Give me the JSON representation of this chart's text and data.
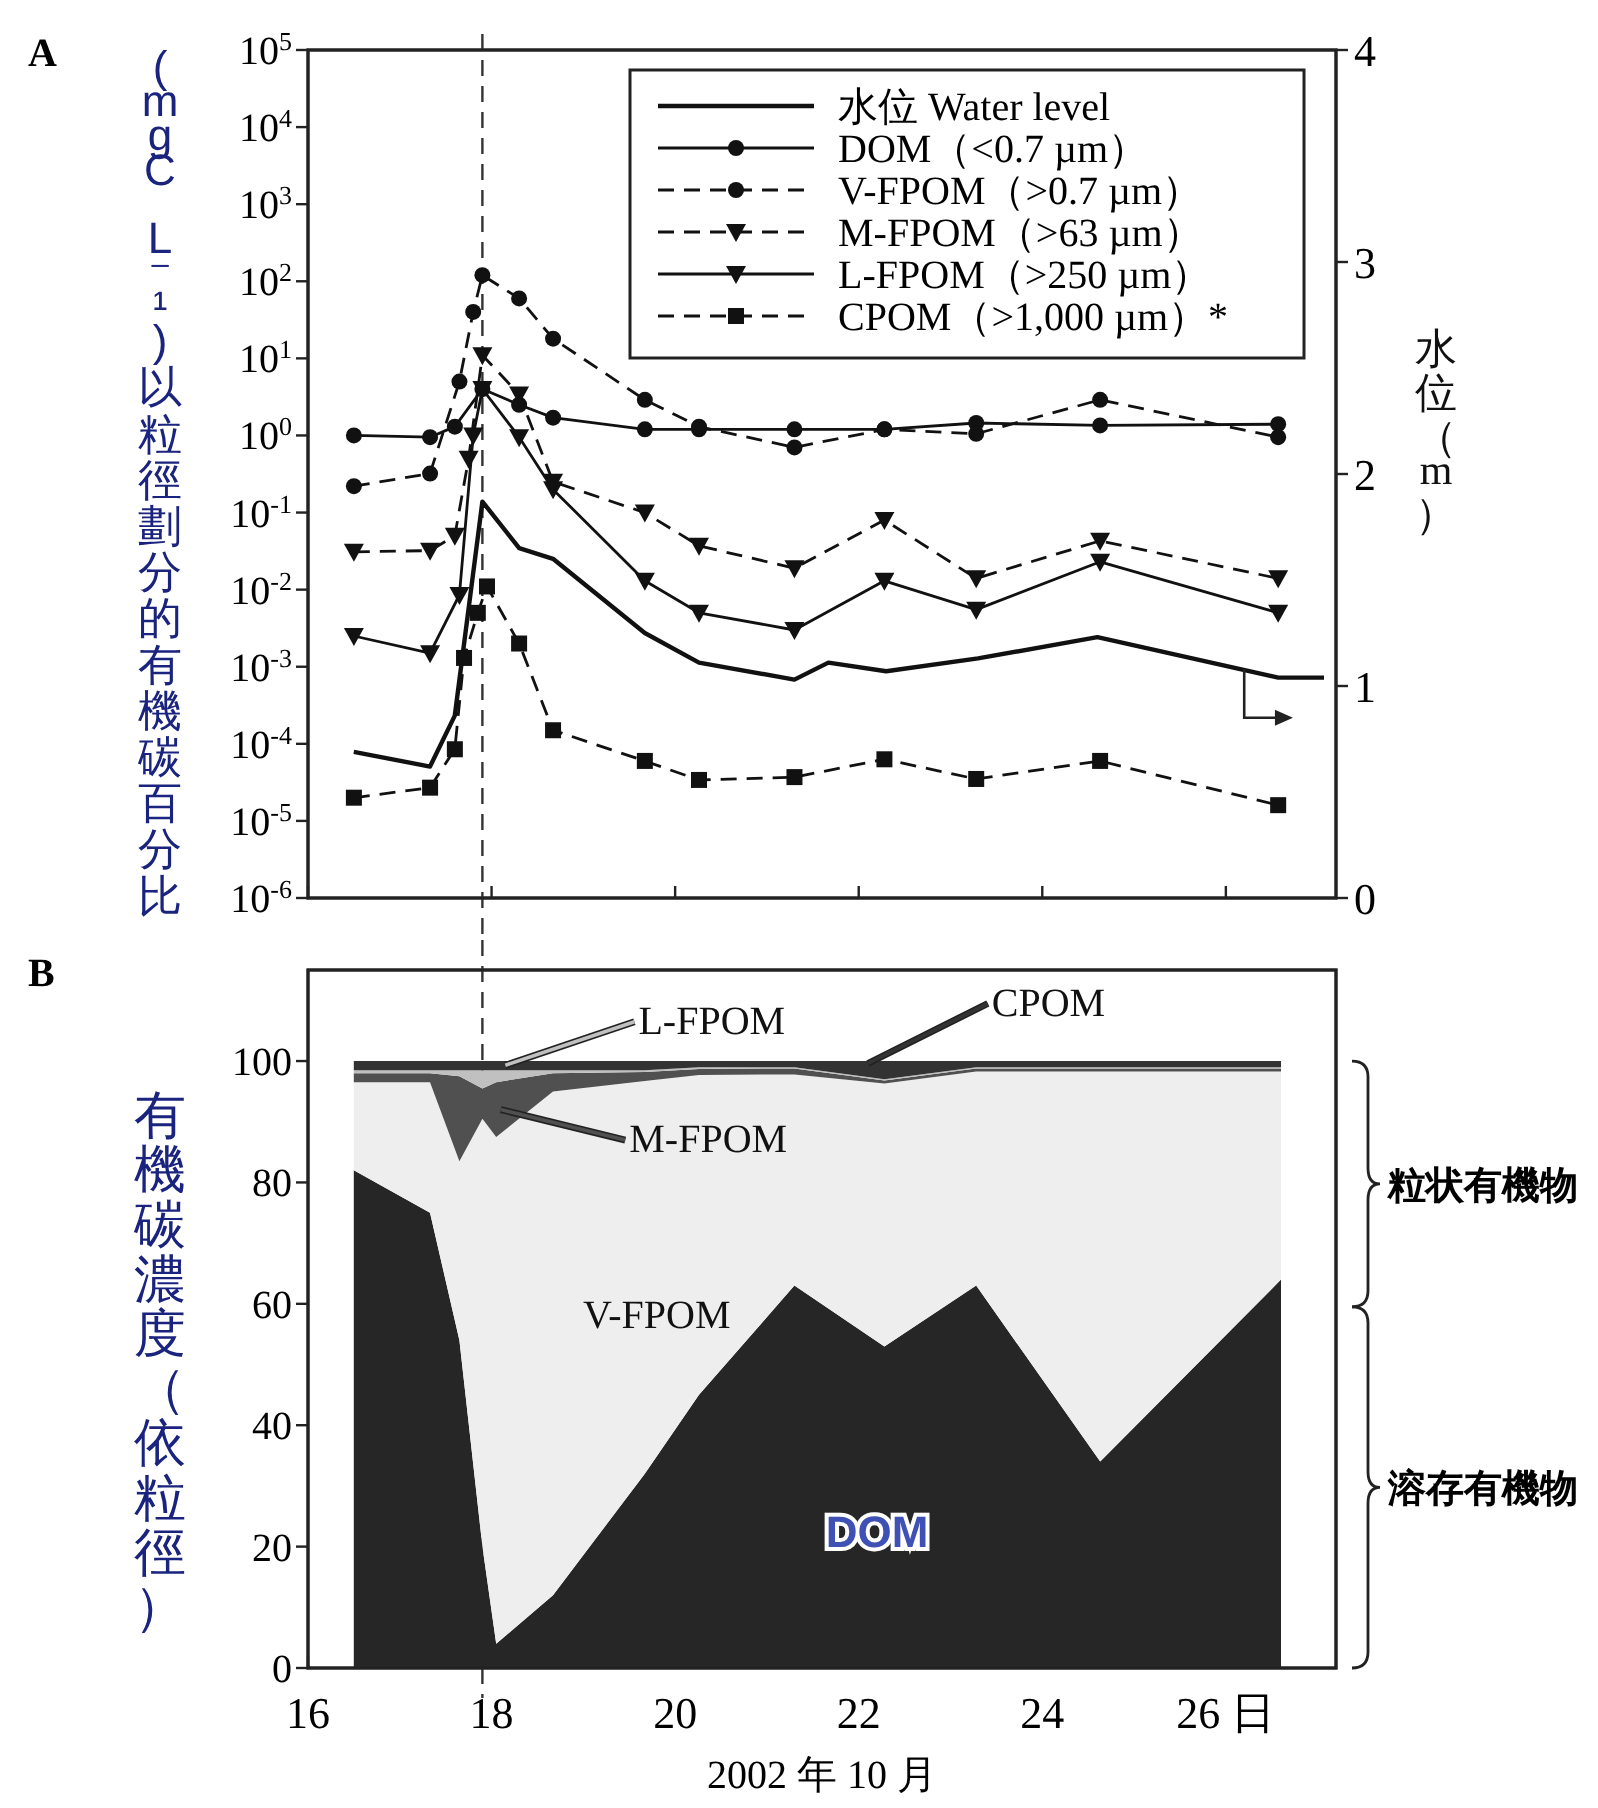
{
  "chart_data": [
    {
      "type": "line",
      "title": "A",
      "ylabel": "(mgC L⁻¹)以粒徑劃分的有機碳百分比",
      "y2label": "水位（m）",
      "xlim": [
        16,
        27.2
      ],
      "xticks": [
        16,
        18,
        20,
        22,
        24,
        26
      ],
      "ylim": [
        1e-06,
        100000
      ],
      "log": "y",
      "yticks": [
        {
          "value": 100000,
          "label": "10$^{5}$"
        },
        {
          "value": 10000,
          "label": "10$^{4}$"
        },
        {
          "value": 1000,
          "label": "10$^{3}$"
        },
        {
          "value": 100,
          "label": "10$^{2}$"
        },
        {
          "value": 10,
          "label": "10$^{1}$"
        },
        {
          "value": 1,
          "label": "10$^{0}$"
        },
        {
          "value": 0.1,
          "label": "10$^{-1}$"
        },
        {
          "value": 0.01,
          "label": "10$^{-2}$"
        },
        {
          "value": 0.001,
          "label": "10$^{-3}$"
        },
        {
          "value": 0.0001,
          "label": "10$^{-4}$"
        },
        {
          "value": 1e-05,
          "label": "10$^{-5}$"
        },
        {
          "value": 1e-06,
          "label": "10$^{-6}$"
        }
      ],
      "y2lim": [
        0,
        4
      ],
      "y2ticks": [
        0,
        1,
        2,
        3,
        4
      ],
      "tick_labels": "y",
      "legend": "top right",
      "ref_lines": [
        {
          "axis": "x",
          "value": 17.9,
          "line_style": "dashed"
        }
      ],
      "series": [
        {
          "name": "水位 Water level",
          "color": "#111111",
          "axis": "y2",
          "marker": "none",
          "line_style": "solid",
          "x": [
            16.5,
            17.33,
            17.6,
            17.9,
            18.3,
            18.67,
            19.67,
            20.26,
            21.3,
            21.67,
            22.3,
            23.3,
            24.6,
            26.57,
            27.07
          ],
          "values": [
            0.69,
            0.62,
            0.86,
            1.87,
            1.65,
            1.6,
            1.25,
            1.11,
            1.03,
            1.11,
            1.07,
            1.13,
            1.23,
            1.04,
            1.04
          ]
        },
        {
          "name": "DOM（<0.7 µm）",
          "color": "#111111",
          "marker": "circle",
          "line_style": "solid",
          "x": [
            16.5,
            17.33,
            17.6,
            17.9,
            18.3,
            18.67,
            19.67,
            20.26,
            21.3,
            22.28,
            23.28,
            24.63,
            26.57
          ],
          "values": [
            1.0,
            0.95,
            1.3,
            4,
            2.5,
            1.7,
            1.2,
            1.2,
            1.2,
            1.2,
            1.45,
            1.35,
            1.4
          ]
        },
        {
          "name": "V-FPOM（>0.7 µm）",
          "color": "#111111",
          "marker": "circle",
          "line_style": "dashed",
          "x": [
            16.5,
            17.33,
            17.65,
            17.8,
            17.9,
            18.3,
            18.67,
            19.67,
            20.26,
            21.3,
            22.28,
            23.28,
            24.63,
            26.57
          ],
          "values": [
            0.22,
            0.32,
            5,
            40,
            120,
            60,
            18,
            2.9,
            1.3,
            0.7,
            1.2,
            1.05,
            2.9,
            0.95
          ]
        },
        {
          "name": "M-FPOM（>63 µm）",
          "color": "#111111",
          "marker": "triangle",
          "line_style": "dashed",
          "x": [
            16.5,
            17.33,
            17.6,
            17.75,
            17.9,
            18.3,
            18.67,
            19.67,
            20.26,
            21.3,
            22.28,
            23.28,
            24.63,
            26.57
          ],
          "values": [
            0.031,
            0.032,
            0.05,
            0.5,
            11,
            3.4,
            0.25,
            0.1,
            0.037,
            0.019,
            0.08,
            0.014,
            0.043,
            0.014
          ]
        },
        {
          "name": "L-FPOM（>250 µm）",
          "color": "#111111",
          "marker": "triangle",
          "line_style": "solid",
          "x": [
            16.5,
            17.33,
            17.65,
            17.8,
            17.9,
            18.3,
            18.67,
            19.67,
            20.26,
            21.3,
            22.28,
            23.28,
            24.63,
            26.57
          ],
          "values": [
            0.0025,
            0.0015,
            0.0085,
            1.0,
            4,
            0.95,
            0.2,
            0.013,
            0.005,
            0.003,
            0.013,
            0.0055,
            0.023,
            0.005
          ]
        },
        {
          "name": "CPOM（>1,000 µm）*",
          "color": "#111111",
          "marker": "square",
          "line_style": "dashed",
          "x": [
            16.5,
            17.33,
            17.6,
            17.7,
            17.85,
            17.95,
            18.3,
            18.67,
            19.67,
            20.26,
            21.3,
            22.28,
            23.28,
            24.63,
            26.57
          ],
          "values": [
            2e-05,
            2.7e-05,
            8.5e-05,
            0.0013,
            0.005,
            0.011,
            0.002,
            0.00015,
            6e-05,
            3.4e-05,
            3.7e-05,
            6.3e-05,
            3.5e-05,
            6e-05,
            1.6e-05
          ]
        }
      ]
    },
    {
      "type": "area",
      "stacked": true,
      "legend": "top",
      "title": "B",
      "ylabel": "有機碳濃度（依粒徑）",
      "xlabel": "2002 年 10 月",
      "xlim": [
        16,
        27.2
      ],
      "xticks": [
        16,
        18,
        20,
        22,
        24,
        {
          "value": 26,
          "label": "26 日"
        }
      ],
      "ylim": [
        0,
        115
      ],
      "yticks": [
        0,
        20,
        40,
        60,
        80,
        100
      ],
      "ref_lines": [
        {
          "axis": "x",
          "value": 17.9,
          "line_style": "dashed"
        }
      ],
      "annotations": [
        "粒状有機物",
        "溶存有機物"
      ],
      "x": [
        16.5,
        17.33,
        17.65,
        17.9,
        18.05,
        18.67,
        19.67,
        20.26,
        21.3,
        22.28,
        23.28,
        24.63,
        26.6
      ],
      "series": [
        {
          "name": "DOM",
          "color": "#262626",
          "values": [
            82,
            75,
            54,
            20,
            4,
            12,
            32,
            45,
            63,
            53,
            63,
            34,
            64
          ]
        },
        {
          "name": "V-FPOM",
          "color": "#eeeeee",
          "values": [
            14.5,
            21.5,
            29.5,
            70.5,
            83.5,
            83,
            64.7,
            52.7,
            34.8,
            43.3,
            35.3,
            64.3,
            34.3
          ]
        },
        {
          "name": "M-FPOM",
          "color": "#505050",
          "values": [
            1.5,
            1.5,
            14,
            5,
            9,
            3,
            1.5,
            1,
            1,
            0.5,
            0.5,
            0.5,
            0.5
          ]
        },
        {
          "name": "L-FPOM",
          "color": "#c0c0c0",
          "values": [
            0.5,
            0.5,
            1,
            3,
            2,
            0.5,
            0.3,
            0.3,
            0.2,
            0.2,
            0.2,
            0.2,
            0.2
          ]
        },
        {
          "name": "CPOM",
          "color": "#333333",
          "values": [
            1.5,
            1.5,
            1.5,
            1.5,
            1.5,
            1.5,
            1.5,
            1,
            1,
            3,
            1,
            1,
            1
          ]
        }
      ]
    }
  ]
}
